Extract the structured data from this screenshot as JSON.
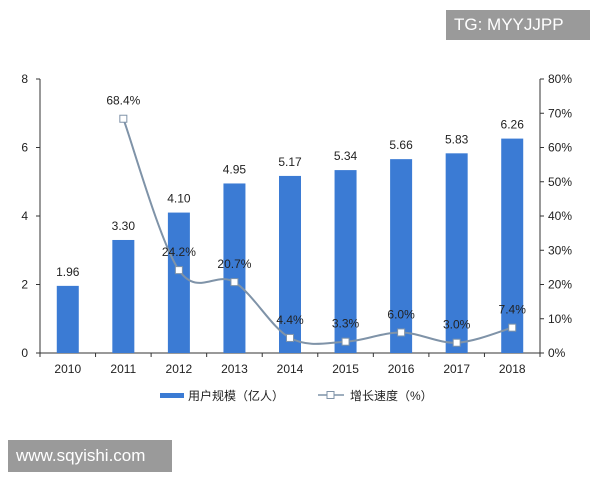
{
  "watermark_top": "TG: MYYJJPP",
  "watermark_bottom": "www.sqyishi.com",
  "chart_data": {
    "type": "bar+line",
    "categories": [
      "2010",
      "2011",
      "2012",
      "2013",
      "2014",
      "2015",
      "2016",
      "2017",
      "2018"
    ],
    "series": [
      {
        "name": "用户规模（亿人）",
        "type": "bar",
        "axis": "left",
        "values": [
          1.96,
          3.3,
          4.1,
          4.95,
          5.17,
          5.34,
          5.66,
          5.83,
          6.26
        ],
        "labels": [
          "1.96",
          "3.30",
          "4.10",
          "4.95",
          "5.17",
          "5.34",
          "5.66",
          "5.83",
          "6.26"
        ],
        "color": "#3b7bd4"
      },
      {
        "name": "增长速度（%）",
        "type": "line",
        "axis": "right",
        "values": [
          null,
          68.4,
          24.2,
          20.7,
          4.4,
          3.3,
          6.0,
          3.0,
          7.4
        ],
        "labels": [
          "",
          "68.4%",
          "24.2%",
          "20.7%",
          "4.4%",
          "3.3%",
          "6.0%",
          "3.0%",
          "7.4%"
        ],
        "color": "#7f93a8"
      }
    ],
    "y_left": {
      "range": [
        0,
        8
      ],
      "ticks": [
        "0",
        "2",
        "4",
        "6",
        "8"
      ]
    },
    "y_right": {
      "range": [
        0,
        80
      ],
      "ticks": [
        "0%",
        "10%",
        "20%",
        "30%",
        "40%",
        "50%",
        "60%",
        "70%",
        "80%"
      ]
    },
    "grid": false,
    "legend": "bottom"
  }
}
